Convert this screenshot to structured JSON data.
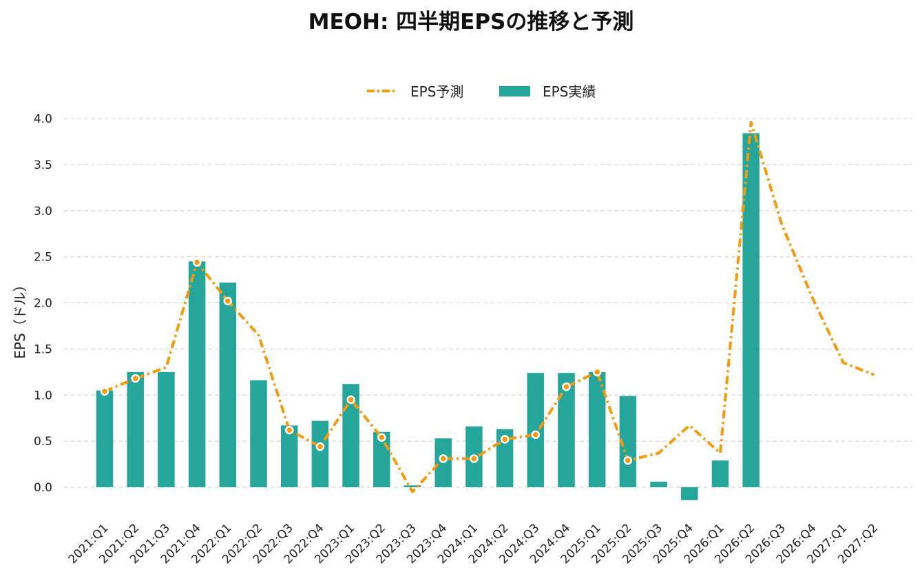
{
  "chart_data": {
    "type": "bar",
    "title": "MEOH: 四半期EPSの推移と予測",
    "ylabel": "EPS（ドル）",
    "xlabel": "",
    "ylim": [
      -0.3,
      4.1
    ],
    "yticks": [
      "0.0",
      "0.5",
      "1.0",
      "1.5",
      "2.0",
      "2.5",
      "3.0",
      "3.5",
      "4.0"
    ],
    "grid": true,
    "legend_placement": "top-center",
    "categories": [
      "2021:Q1",
      "2021:Q2",
      "2021:Q3",
      "2021:Q4",
      "2022:Q1",
      "2022:Q2",
      "2022:Q3",
      "2022:Q4",
      "2023:Q1",
      "2023:Q2",
      "2023:Q3",
      "2023:Q4",
      "2024:Q1",
      "2024:Q2",
      "2024:Q3",
      "2024:Q4",
      "2025:Q1",
      "2025:Q2",
      "2025:Q3",
      "2025:Q4",
      "2026:Q1",
      "2026:Q2",
      "2026:Q3",
      "2026:Q4",
      "2027:Q1",
      "2027:Q2"
    ],
    "series": [
      {
        "name": "EPS予測",
        "kind": "line",
        "color": "#F59A0E",
        "values": [
          1.04,
          1.18,
          1.3,
          2.44,
          2.02,
          1.65,
          0.62,
          0.44,
          0.95,
          0.54,
          -0.05,
          0.31,
          0.31,
          0.52,
          0.57,
          1.09,
          1.25,
          0.29,
          0.37,
          0.67,
          0.37,
          3.96,
          2.85,
          2.05,
          1.35,
          1.22
        ],
        "markers": [
          true,
          true,
          false,
          true,
          true,
          false,
          true,
          true,
          true,
          true,
          false,
          true,
          true,
          true,
          true,
          true,
          true,
          true,
          false,
          false,
          false,
          false,
          false,
          false,
          false,
          false
        ]
      },
      {
        "name": "EPS実績",
        "kind": "bar",
        "color": "#26A69A",
        "values": [
          1.05,
          1.25,
          1.25,
          2.45,
          2.22,
          1.16,
          0.67,
          0.72,
          1.12,
          0.6,
          0.02,
          0.53,
          0.66,
          0.63,
          1.24,
          1.24,
          1.25,
          0.99,
          0.06,
          -0.14,
          0.29,
          3.84,
          null,
          null,
          null,
          null
        ]
      }
    ]
  }
}
